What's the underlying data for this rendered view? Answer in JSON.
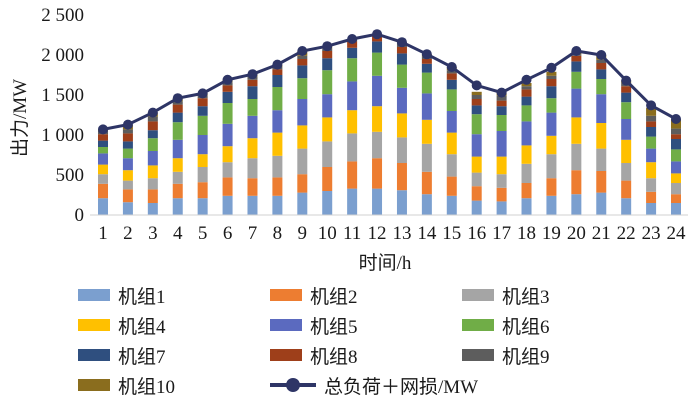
{
  "chart_data": {
    "type": "bar",
    "subtype": "stacked-bar-with-line",
    "xlabel": "时间/h",
    "ylabel": "出力/MW",
    "ylim": [
      0,
      2500
    ],
    "yticks": [
      "0",
      "500",
      "1 000",
      "1 500",
      "2 000",
      "2 500"
    ],
    "ytick_values": [
      0,
      500,
      1000,
      1500,
      2000,
      2500
    ],
    "categories": [
      "1",
      "2",
      "3",
      "4",
      "5",
      "6",
      "7",
      "8",
      "9",
      "10",
      "11",
      "12",
      "13",
      "14",
      "15",
      "16",
      "17",
      "18",
      "19",
      "20",
      "21",
      "22",
      "23",
      "24"
    ],
    "grid": false,
    "legend_position": "bottom",
    "series": [
      {
        "name": "机组1",
        "type": "bar",
        "color": "#7b9fcf",
        "values": [
          210,
          160,
          150,
          210,
          210,
          240,
          240,
          240,
          280,
          300,
          330,
          330,
          310,
          260,
          240,
          180,
          170,
          210,
          240,
          260,
          280,
          210,
          150,
          150
        ]
      },
      {
        "name": "机组2",
        "type": "bar",
        "color": "#ed7d31",
        "values": [
          180,
          160,
          170,
          180,
          200,
          230,
          220,
          230,
          230,
          300,
          340,
          380,
          340,
          280,
          240,
          180,
          170,
          190,
          220,
          300,
          270,
          220,
          140,
          110
        ]
      },
      {
        "name": "机组3",
        "type": "bar",
        "color": "#a5a5a5",
        "values": [
          120,
          110,
          140,
          150,
          190,
          190,
          250,
          270,
          320,
          320,
          350,
          330,
          320,
          350,
          280,
          170,
          170,
          240,
          300,
          330,
          280,
          220,
          170,
          140
        ]
      },
      {
        "name": "机组4",
        "type": "bar",
        "color": "#ffc000",
        "values": [
          120,
          130,
          160,
          170,
          160,
          200,
          250,
          290,
          290,
          300,
          290,
          320,
          300,
          300,
          270,
          200,
          220,
          230,
          230,
          330,
          320,
          290,
          200,
          120
        ]
      },
      {
        "name": "机组5",
        "type": "bar",
        "color": "#5b6abf",
        "values": [
          140,
          150,
          180,
          230,
          240,
          280,
          280,
          280,
          330,
          290,
          360,
          380,
          320,
          330,
          270,
          280,
          320,
          300,
          290,
          360,
          360,
          260,
          170,
          150
        ]
      },
      {
        "name": "机组6",
        "type": "bar",
        "color": "#70ad47",
        "values": [
          80,
          120,
          160,
          220,
          240,
          260,
          210,
          290,
          260,
          300,
          290,
          290,
          290,
          260,
          270,
          250,
          200,
          200,
          180,
          210,
          190,
          210,
          150,
          150
        ]
      },
      {
        "name": "机组7",
        "type": "bar",
        "color": "#2f4f7f",
        "values": [
          80,
          90,
          100,
          120,
          120,
          140,
          160,
          150,
          160,
          150,
          130,
          140,
          140,
          110,
          120,
          110,
          110,
          110,
          150,
          130,
          120,
          120,
          120,
          130
        ]
      },
      {
        "name": "机组8",
        "type": "bar",
        "color": "#9e3f1a",
        "values": [
          80,
          100,
          110,
          100,
          100,
          80,
          80,
          70,
          80,
          90,
          80,
          70,
          80,
          60,
          80,
          80,
          70,
          90,
          90,
          70,
          80,
          80,
          70,
          60
        ]
      },
      {
        "name": "机组9",
        "type": "bar",
        "color": "#5d5d5d",
        "values": [
          40,
          50,
          60,
          40,
          30,
          40,
          40,
          30,
          40,
          30,
          20,
          20,
          50,
          30,
          40,
          50,
          60,
          40,
          40,
          20,
          40,
          40,
          70,
          70
        ]
      },
      {
        "name": "机组10",
        "type": "bar",
        "color": "#8a6d1e",
        "values": [
          20,
          60,
          50,
          40,
          30,
          30,
          30,
          30,
          60,
          30,
          10,
          10,
          10,
          30,
          40,
          40,
          40,
          40,
          50,
          40,
          60,
          30,
          100,
          120
        ]
      },
      {
        "name": "总负荷＋网损/MW",
        "type": "line",
        "color": "#2e3566",
        "values": [
          1070,
          1130,
          1280,
          1460,
          1520,
          1690,
          1760,
          1880,
          2050,
          2110,
          2200,
          2260,
          2160,
          2010,
          1850,
          1620,
          1530,
          1690,
          1840,
          2050,
          2000,
          1680,
          1370,
          1200
        ]
      }
    ]
  }
}
